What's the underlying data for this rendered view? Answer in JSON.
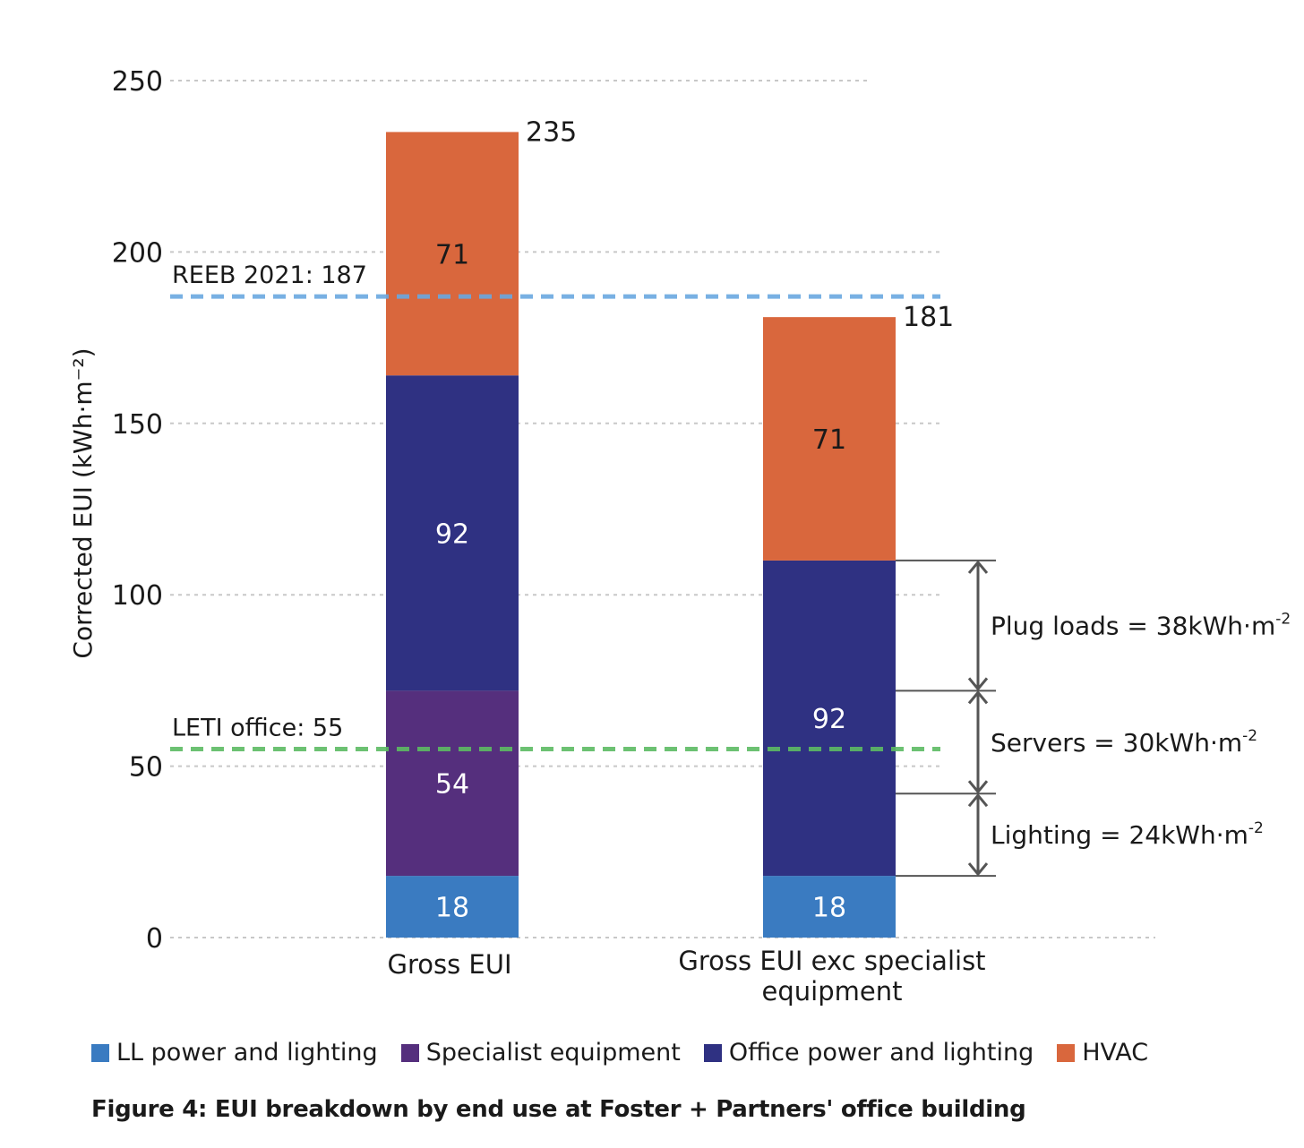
{
  "chart_data": {
    "type": "bar",
    "stacked": true,
    "ylabel": "Corrected EUI (kWh·m⁻²)",
    "ylim": [
      0,
      250
    ],
    "yticks": [
      0,
      50,
      100,
      150,
      200,
      250
    ],
    "grid": true,
    "categories": [
      "Gross EUI",
      "Gross EUI exc specialist equipment"
    ],
    "series": [
      {
        "name": "LL power and lighting",
        "color": "#3a7bc1",
        "values": [
          18,
          18
        ],
        "labels": [
          "18",
          "18"
        ]
      },
      {
        "name": "Specialist equipment",
        "color": "#552f7d",
        "values": [
          54,
          0
        ],
        "labels": [
          "54",
          ""
        ]
      },
      {
        "name": "Office power and lighting",
        "color": "#2f3182",
        "values": [
          92,
          92
        ],
        "labels": [
          "92",
          "92"
        ]
      },
      {
        "name": "HVAC",
        "color": "#d9673d",
        "values": [
          71,
          71
        ],
        "labels": [
          "71",
          "71"
        ]
      }
    ],
    "totals": [
      235,
      181
    ],
    "total_labels": [
      "235",
      "181"
    ],
    "reference_lines": [
      {
        "label": "REEB 2021: 187",
        "value": 187,
        "color": "#6aa8e0"
      },
      {
        "label": "LETI office: 55",
        "value": 55,
        "color": "#5dbb63"
      }
    ],
    "annotations": [
      {
        "text": "Plug loads = 38kWh·m",
        "sup": "-2",
        "from": 72,
        "to": 110
      },
      {
        "text": "Servers = 30kWh·m",
        "sup": "-2",
        "from": 42,
        "to": 72
      },
      {
        "text": "Lighting = 24kWh·m",
        "sup": "-2",
        "from": 18,
        "to": 42
      }
    ],
    "legend_position": "bottom",
    "caption": "Figure 4: EUI breakdown by end use at Foster + Partners' office building"
  }
}
